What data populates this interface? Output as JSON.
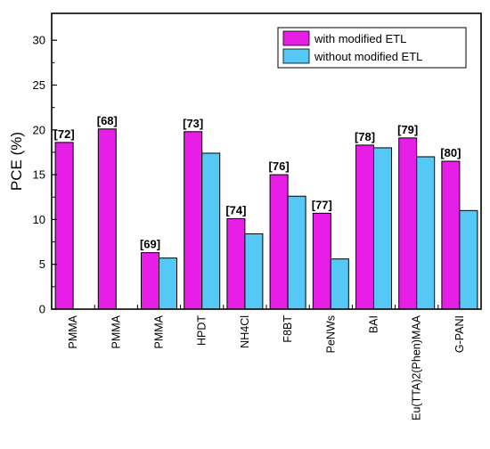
{
  "chart_data": {
    "type": "bar",
    "title": "",
    "xlabel": "",
    "ylabel": "PCE (%)",
    "ylim": [
      0,
      33
    ],
    "yticks": [
      0,
      5,
      10,
      15,
      20,
      25,
      30
    ],
    "grid": false,
    "legend_position": "top-right",
    "categories": [
      "PMMA",
      "PMMA",
      "PMMA",
      "HPDT",
      "NH4Cl",
      "F8BT",
      "PeNWs",
      "BAI",
      "Eu(TTA)2(Phen)MAA",
      "G-PANI"
    ],
    "references": [
      "[72]",
      "[68]",
      "[69]",
      "[73]",
      "[74]",
      "[76]",
      "[77]",
      "[78]",
      "[79]",
      "[80]"
    ],
    "series": [
      {
        "name": "with modified ETL",
        "color": "#e61ee6",
        "values": [
          18.6,
          20.1,
          6.3,
          19.8,
          10.1,
          15.0,
          10.7,
          18.3,
          19.1,
          16.5
        ]
      },
      {
        "name": "without modified ETL",
        "color": "#55c8f5",
        "values": [
          null,
          null,
          5.7,
          17.4,
          8.4,
          12.6,
          5.6,
          18.0,
          17.0,
          11.0
        ]
      }
    ]
  }
}
